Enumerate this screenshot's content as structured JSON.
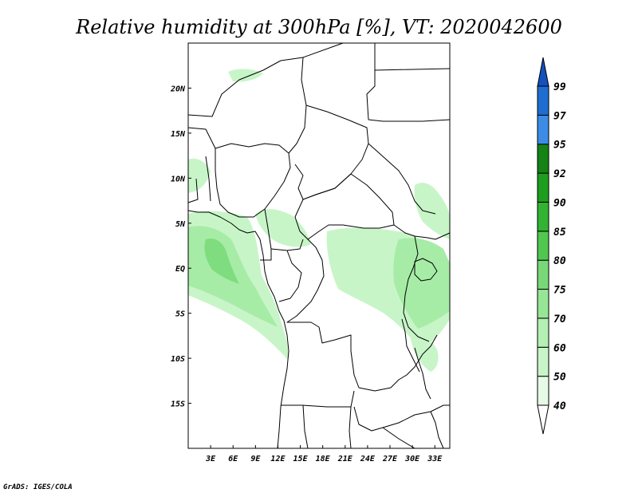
{
  "title": "Relative humidity at 300hPa [%], VT: 2020042600",
  "credit": "GrADS: IGES/COLA",
  "map": {
    "lon_range": [
      0,
      35
    ],
    "lat_range": [
      -20,
      25
    ],
    "x_ticks": [
      "3E",
      "6E",
      "9E",
      "12E",
      "15E",
      "18E",
      "21E",
      "24E",
      "27E",
      "30E",
      "33E"
    ],
    "y_ticks": [
      "20N",
      "15N",
      "10N",
      "5N",
      "EQ",
      "5S",
      "10S",
      "15S"
    ]
  },
  "colorbar": {
    "levels": [
      "40",
      "50",
      "60",
      "70",
      "75",
      "80",
      "85",
      "90",
      "92",
      "95",
      "97",
      "99"
    ],
    "colors": [
      "#ffffff",
      "#e6fae6",
      "#c8f5c8",
      "#b4f0b4",
      "#96e696",
      "#78d878",
      "#50c850",
      "#32b432",
      "#1e9e1e",
      "#148214",
      "#3c8ce6",
      "#1e6ed2",
      "#1450be"
    ]
  },
  "fields": {
    "light": "#c8f5c8",
    "mid": "#a6eca6",
    "dark": "#7fdc7f"
  }
}
